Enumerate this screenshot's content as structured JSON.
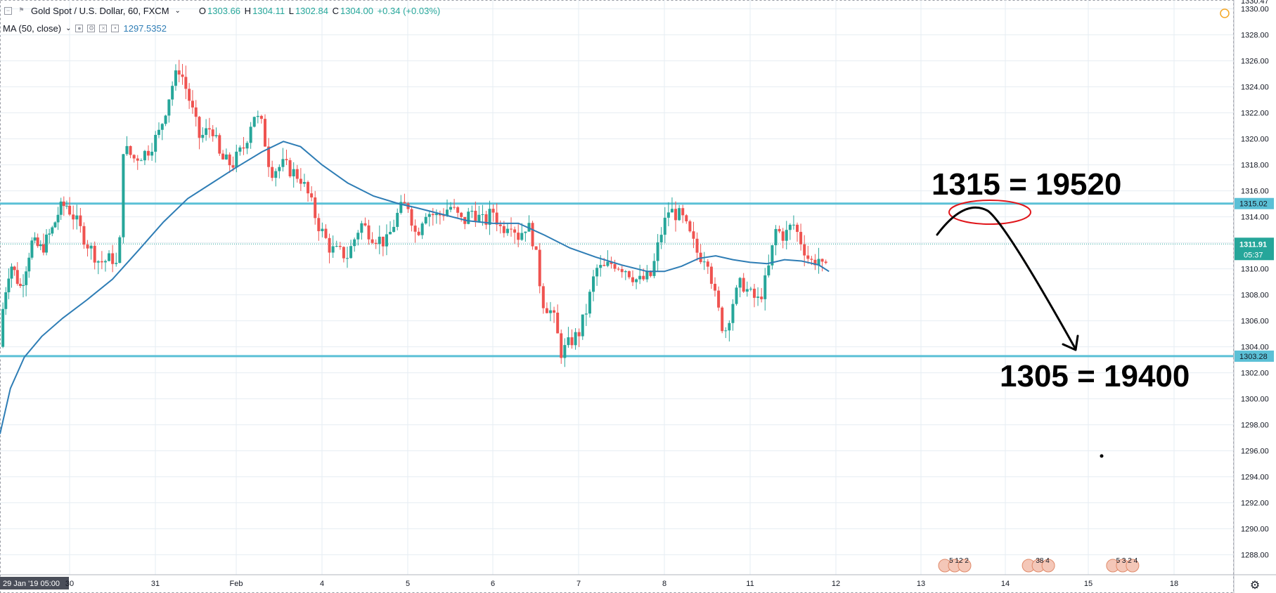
{
  "legend": {
    "symbol": "Gold Spot / U.S. Dollar, 60, FXCM",
    "open_label": "O",
    "open": "1303.66",
    "high_label": "H",
    "high": "1304.11",
    "low_label": "L",
    "low": "1302.84",
    "close_label": "C",
    "close": "1304.00",
    "change": "+0.34 (+0.03%)",
    "ma_label": "MA (50, close)",
    "ma_value": "1297.5352"
  },
  "colors": {
    "up": "#26a69a",
    "down": "#ef5350",
    "ma": "#2e7db5",
    "hline": "#5bc0d6",
    "grid": "#e6edf3",
    "annotation": "#000000",
    "circle": "#e0161b"
  },
  "chart_data": {
    "type": "candlestick",
    "title": "Gold Spot / U.S. Dollar, 60, FXCM",
    "y_ticks": [
      "1330.00",
      "1328.00",
      "1326.00",
      "1324.00",
      "1322.00",
      "1320.00",
      "1318.00",
      "1316.00",
      "1314.00",
      "1312.00",
      "1310.00",
      "1308.00",
      "1306.00",
      "1304.00",
      "1302.00",
      "1300.00",
      "1298.00",
      "1296.00",
      "1294.00",
      "1292.00",
      "1290.00",
      "1288.00"
    ],
    "y_top_partial": "1330.47",
    "ylim": [
      1286.5,
      1330.8
    ],
    "x_ticks": [
      {
        "label": "29 Jan '19  05:00",
        "day": 0,
        "boxed": true
      },
      {
        "label": "30",
        "day": 1
      },
      {
        "label": "31",
        "day": 2
      },
      {
        "label": "Feb",
        "day": 3
      },
      {
        "label": "4",
        "day": 4
      },
      {
        "label": "5",
        "day": 5
      },
      {
        "label": "6",
        "day": 6
      },
      {
        "label": "7",
        "day": 7
      },
      {
        "label": "8",
        "day": 8
      },
      {
        "label": "11",
        "day": 9
      },
      {
        "label": "12",
        "day": 10
      },
      {
        "label": "13",
        "day": 11
      },
      {
        "label": "14",
        "day": 12
      },
      {
        "label": "15",
        "day": 13
      },
      {
        "label": "18",
        "day": 14
      }
    ],
    "price_path": [
      [
        0.0,
        1304.0
      ],
      [
        0.05,
        1307.5
      ],
      [
        0.15,
        1310.5
      ],
      [
        0.3,
        1308.5
      ],
      [
        0.45,
        1312.0
      ],
      [
        0.6,
        1311.5
      ],
      [
        0.75,
        1313.0
      ],
      [
        0.85,
        1314.5
      ],
      [
        0.95,
        1315.0
      ],
      [
        1.05,
        1314.0
      ],
      [
        1.2,
        1312.0
      ],
      [
        1.35,
        1310.5
      ],
      [
        1.5,
        1310.8
      ],
      [
        1.58,
        1309.8
      ],
      [
        1.6,
        1319.5
      ],
      [
        1.75,
        1318.5
      ],
      [
        1.9,
        1319.0
      ],
      [
        2.05,
        1320.5
      ],
      [
        2.2,
        1324.0
      ],
      [
        2.3,
        1325.5
      ],
      [
        2.42,
        1323.0
      ],
      [
        2.55,
        1320.0
      ],
      [
        2.7,
        1321.0
      ],
      [
        2.8,
        1318.5
      ],
      [
        2.95,
        1318.0
      ],
      [
        3.1,
        1319.5
      ],
      [
        3.2,
        1322.0
      ],
      [
        3.3,
        1321.0
      ],
      [
        3.4,
        1317.5
      ],
      [
        3.55,
        1318.0
      ],
      [
        3.65,
        1317.5
      ],
      [
        3.75,
        1317.0
      ],
      [
        3.85,
        1315.5
      ],
      [
        3.95,
        1313.5
      ],
      [
        4.1,
        1311.5
      ],
      [
        4.3,
        1311.0
      ],
      [
        4.45,
        1313.5
      ],
      [
        4.6,
        1312.5
      ],
      [
        4.75,
        1312.0
      ],
      [
        4.9,
        1314.5
      ],
      [
        5.0,
        1315.0
      ],
      [
        5.1,
        1312.5
      ],
      [
        5.2,
        1314.5
      ],
      [
        5.35,
        1314.0
      ],
      [
        5.5,
        1314.8
      ],
      [
        5.65,
        1313.5
      ],
      [
        5.75,
        1314.5
      ],
      [
        5.9,
        1313.5
      ],
      [
        6.0,
        1314.5
      ],
      [
        6.1,
        1313.0
      ],
      [
        6.2,
        1313.8
      ],
      [
        6.3,
        1312.5
      ],
      [
        6.4,
        1313.5
      ],
      [
        6.48,
        1312.0
      ],
      [
        6.58,
        1307.5
      ],
      [
        6.7,
        1306.5
      ],
      [
        6.8,
        1303.5
      ],
      [
        6.92,
        1304.5
      ],
      [
        7.0,
        1305.0
      ],
      [
        7.1,
        1307.0
      ],
      [
        7.2,
        1310.0
      ],
      [
        7.3,
        1310.0
      ],
      [
        7.4,
        1310.5
      ],
      [
        7.55,
        1310.0
      ],
      [
        7.7,
        1309.0
      ],
      [
        7.85,
        1309.5
      ],
      [
        7.95,
        1312.5
      ],
      [
        8.05,
        1314.5
      ],
      [
        8.2,
        1314.0
      ],
      [
        8.3,
        1312.5
      ],
      [
        8.4,
        1311.0
      ],
      [
        8.5,
        1311.0
      ],
      [
        8.6,
        1307.5
      ],
      [
        8.7,
        1305.0
      ],
      [
        8.8,
        1307.5
      ],
      [
        8.9,
        1309.0
      ],
      [
        9.0,
        1308.0
      ],
      [
        9.1,
        1307.5
      ],
      [
        9.2,
        1309.5
      ],
      [
        9.3,
        1313.0
      ],
      [
        9.4,
        1312.5
      ],
      [
        9.5,
        1313.5
      ],
      [
        9.6,
        1312.0
      ],
      [
        9.7,
        1310.5
      ],
      [
        9.8,
        1310.8
      ],
      [
        9.87,
        1309.5
      ],
      [
        9.92,
        1311.0
      ]
    ],
    "ma_path": [
      [
        0.0,
        1297.3
      ],
      [
        0.15,
        1300.8
      ],
      [
        0.35,
        1303.2
      ],
      [
        0.6,
        1304.8
      ],
      [
        0.9,
        1306.2
      ],
      [
        1.2,
        1307.6
      ],
      [
        1.5,
        1309.2
      ],
      [
        1.8,
        1311.4
      ],
      [
        2.1,
        1313.6
      ],
      [
        2.4,
        1315.4
      ],
      [
        2.7,
        1316.6
      ],
      [
        3.0,
        1317.8
      ],
      [
        3.3,
        1319.0
      ],
      [
        3.55,
        1319.8
      ],
      [
        3.75,
        1319.4
      ],
      [
        4.0,
        1318.0
      ],
      [
        4.3,
        1316.6
      ],
      [
        4.6,
        1315.6
      ],
      [
        4.9,
        1315.0
      ],
      [
        5.1,
        1314.7
      ],
      [
        5.4,
        1314.2
      ],
      [
        5.7,
        1313.7
      ],
      [
        6.0,
        1313.5
      ],
      [
        6.3,
        1313.5
      ],
      [
        6.6,
        1312.6
      ],
      [
        6.9,
        1311.6
      ],
      [
        7.2,
        1310.9
      ],
      [
        7.5,
        1310.3
      ],
      [
        7.8,
        1309.8
      ],
      [
        8.0,
        1309.8
      ],
      [
        8.2,
        1310.2
      ],
      [
        8.4,
        1310.8
      ],
      [
        8.6,
        1311.0
      ],
      [
        8.8,
        1310.7
      ],
      [
        9.0,
        1310.5
      ],
      [
        9.2,
        1310.4
      ],
      [
        9.4,
        1310.7
      ],
      [
        9.6,
        1310.6
      ],
      [
        9.8,
        1310.3
      ],
      [
        9.92,
        1309.8
      ]
    ],
    "levels": [
      {
        "name": "resistance",
        "value": 1315.02,
        "label": "1315.02"
      },
      {
        "name": "support",
        "value": 1303.28,
        "label": "1303.28"
      }
    ],
    "current_price": {
      "value": 1311.91,
      "label": "1311.91",
      "countdown": "05:37"
    },
    "ma_series": {
      "name": "MA (50, close)",
      "value": "1297.5352"
    },
    "annotations": {
      "top_text": "1315 = 19520",
      "bottom_text": "1305 = 19400"
    },
    "event_markers": [
      {
        "day": 11.45,
        "text": "5 12 2"
      },
      {
        "day": 12.45,
        "text": "38 4"
      },
      {
        "day": 13.45,
        "text": "5 3 2 4"
      }
    ]
  }
}
